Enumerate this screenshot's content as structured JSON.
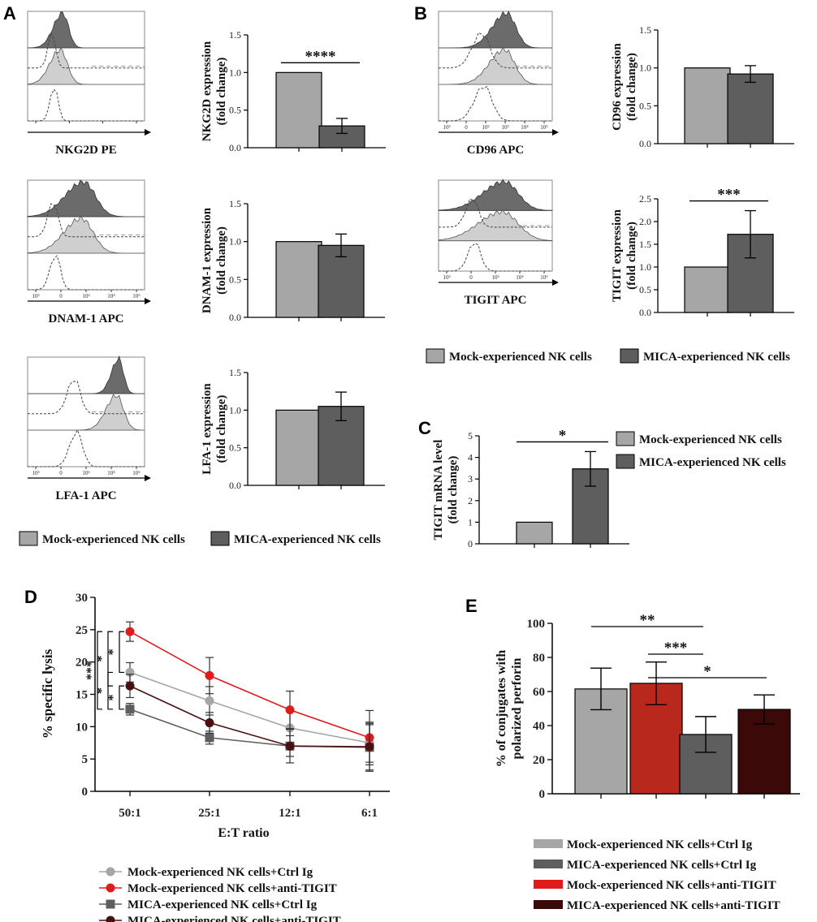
{
  "panel_letters": [
    "A",
    "B",
    "C",
    "D",
    "E"
  ],
  "colors": {
    "mock": "#a6a6a6",
    "mica": "#5e5e5e",
    "mock_anti": "#e01b1b",
    "mica_anti": "#4a1010",
    "e_mock_ctrl": "#a6a6a6",
    "e_mock_anti": "#b8281c",
    "e_mica_ctrl": "#5e5e5e",
    "e_mica_anti": "#3b0a08"
  },
  "histograms": [
    {
      "panel": "A",
      "label": "NKG2D PE",
      "ticks": [
        "",
        "",
        "",
        ""
      ]
    },
    {
      "panel": "A",
      "label": "DNAM-1 APC",
      "ticks": [
        "10³",
        "0",
        "10³",
        "10⁴",
        "10⁵"
      ]
    },
    {
      "panel": "A",
      "label": "LFA-1 APC",
      "ticks": [
        "10³",
        "0",
        "10³",
        "10⁴",
        "10⁵"
      ]
    },
    {
      "panel": "B",
      "label": "CD96 APC",
      "ticks": [
        "10³",
        "0",
        "10²",
        "10³",
        "10⁴",
        "10⁵"
      ]
    },
    {
      "panel": "B",
      "label": "TIGIT APC",
      "ticks": [
        "10³",
        "0",
        "10³",
        "10⁴",
        "10⁵"
      ]
    }
  ],
  "legend_A": [
    "Mock-experienced NK cells",
    "MICA-experienced NK cells"
  ],
  "legend_B": [
    "Mock-experienced NK cells",
    "MICA-experienced NK cells"
  ],
  "legend_C": [
    "Mock-experienced NK cells",
    "MICA-experienced NK cells"
  ],
  "legend_D": [
    "Mock-experienced NK cells+Ctrl Ig",
    "Mock-experienced NK cells+anti-TIGIT",
    "MICA-experienced NK cells+Ctrl Ig",
    "MICA-experienced NK cells+anti-TIGIT"
  ],
  "legend_E": [
    "Mock-experienced NK cells+Ctrl Ig",
    "MICA-experienced NK cells+Ctrl Ig",
    "Mock-experienced NK cells+anti-TIGIT",
    "MICA-experienced NK cells+anti-TIGIT"
  ],
  "chart_data": [
    {
      "id": "nkg2d",
      "type": "bar",
      "categories": [
        "Mock-experienced NK cells",
        "MICA-experienced NK cells"
      ],
      "values": [
        1.0,
        0.29
      ],
      "errors": [
        0,
        0.1
      ],
      "ylabel": [
        "NKG2D expression",
        "(fold change)"
      ],
      "ylim": [
        0,
        1.5
      ],
      "yticks": [
        "0.0",
        "0.5",
        "1.0",
        "1.5"
      ],
      "significance": "****"
    },
    {
      "id": "dnam1",
      "type": "bar",
      "categories": [
        "Mock-experienced NK cells",
        "MICA-experienced NK cells"
      ],
      "values": [
        1.0,
        0.95
      ],
      "errors": [
        0,
        0.15
      ],
      "ylabel": [
        "DNAM-1 expression",
        "(fold change)"
      ],
      "ylim": [
        0,
        1.5
      ],
      "yticks": [
        "0.0",
        "0.5",
        "1.0",
        "1.5"
      ],
      "significance": ""
    },
    {
      "id": "lfa1",
      "type": "bar",
      "categories": [
        "Mock-experienced NK cells",
        "MICA-experienced NK cells"
      ],
      "values": [
        1.0,
        1.05
      ],
      "errors": [
        0,
        0.19
      ],
      "ylabel": [
        "LFA-1 expression",
        "(fold change)"
      ],
      "ylim": [
        0,
        1.5
      ],
      "yticks": [
        "0.0",
        "0.5",
        "1.0",
        "1.5"
      ],
      "significance": ""
    },
    {
      "id": "cd96",
      "type": "bar",
      "categories": [
        "Mock-experienced NK cells",
        "MICA-experienced NK cells"
      ],
      "values": [
        1.0,
        0.92
      ],
      "errors": [
        0,
        0.11
      ],
      "ylabel": [
        "CD96 expression",
        "(fold change)"
      ],
      "ylim": [
        0,
        1.5
      ],
      "yticks": [
        "0.0",
        "0.5",
        "1.0",
        "1.5"
      ],
      "significance": ""
    },
    {
      "id": "tigit",
      "type": "bar",
      "categories": [
        "Mock-experienced NK cells",
        "MICA-experienced NK cells"
      ],
      "values": [
        1.0,
        1.72
      ],
      "errors": [
        0,
        0.52
      ],
      "ylabel": [
        "TIGIT expression",
        "(fold change)"
      ],
      "ylim": [
        0,
        2.5
      ],
      "yticks": [
        "0.0",
        "0.5",
        "1.0",
        "1.5",
        "2.0",
        "2.5"
      ],
      "significance": "***"
    },
    {
      "id": "mrna",
      "type": "bar",
      "categories": [
        "Mock-experienced NK cells",
        "MICA-experienced NK cells"
      ],
      "values": [
        1.0,
        3.47
      ],
      "errors": [
        0,
        0.8
      ],
      "ylabel": [
        "TIGIT mRNA level",
        "(fold change)"
      ],
      "ylim": [
        0,
        5
      ],
      "yticks": [
        "0",
        "1",
        "2",
        "3",
        "4",
        "5"
      ],
      "significance": "*"
    },
    {
      "id": "lysis",
      "type": "line",
      "x": [
        "50:1",
        "25:1",
        "12:1",
        "6:1"
      ],
      "xlabel": "E:T ratio",
      "ylabel": "% specific lysis",
      "ylim": [
        0,
        30
      ],
      "yticks": [
        "0",
        "5",
        "10",
        "15",
        "20",
        "25",
        "30"
      ],
      "series": [
        {
          "name": "Mock-experienced NK cells+Ctrl Ig",
          "values": [
            18.4,
            14.0,
            9.8,
            7.5
          ],
          "errors": [
            1.5,
            2.2,
            2.6,
            3.0
          ]
        },
        {
          "name": "Mock-experienced NK cells+anti-TIGIT",
          "values": [
            24.7,
            17.9,
            12.6,
            8.3
          ],
          "errors": [
            1.5,
            2.8,
            2.9,
            4.2
          ]
        },
        {
          "name": "MICA-experienced NK cells+Ctrl Ig",
          "values": [
            12.7,
            8.3,
            7.0,
            6.8
          ],
          "errors": [
            0.9,
            1.0,
            2.6,
            3.5
          ]
        },
        {
          "name": "MICA-experienced NK cells+anti-TIGIT",
          "values": [
            16.3,
            10.6,
            7.0,
            6.9
          ],
          "errors": [
            1.8,
            1.6,
            1.6,
            3.8
          ]
        }
      ],
      "significance": [
        "*",
        "*",
        "***",
        "*",
        "*"
      ]
    },
    {
      "id": "perforin",
      "type": "bar",
      "categories": [
        "Mock-experienced NK cells+Ctrl Ig",
        "Mock-experienced NK cells+anti-TIGIT",
        "MICA-experienced NK cells+Ctrl Ig",
        "MICA-experienced NK cells+anti-TIGIT"
      ],
      "values": [
        61.5,
        64.8,
        34.8,
        49.5
      ],
      "errors": [
        12.2,
        12.5,
        10.5,
        8.5
      ],
      "ylabel": [
        "% of conjugates with",
        "polarized perforin"
      ],
      "ylim": [
        0,
        100
      ],
      "yticks": [
        "0",
        "20",
        "40",
        "60",
        "80",
        "100"
      ],
      "significance": [
        "**",
        "***",
        "*"
      ]
    }
  ]
}
